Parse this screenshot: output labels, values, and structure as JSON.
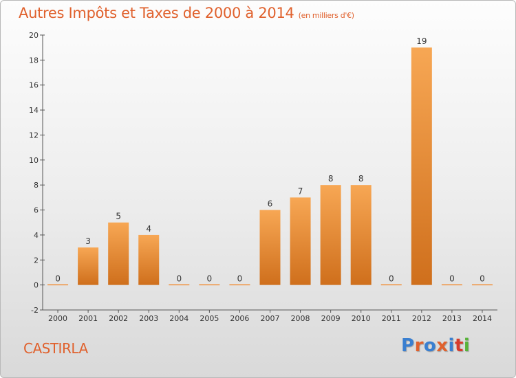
{
  "header": {
    "title": "Autres Impôts et Taxes de 2000 à 2014",
    "unit": "(en milliers d'€)"
  },
  "footer": {
    "commune": "CASTIRLA",
    "logo": "Proxiti",
    "logo_colors": [
      "#3a7fd0",
      "#e0612d",
      "#3a7fd0",
      "#e0612d",
      "#3a7fd0",
      "#d83a2a",
      "#57b33a"
    ]
  },
  "chart_data": {
    "type": "bar",
    "title": "Autres Impôts et Taxes de 2000 à 2014",
    "subtitle": "(en milliers d'€)",
    "categories": [
      "2000",
      "2001",
      "2002",
      "2003",
      "2004",
      "2005",
      "2006",
      "2007",
      "2008",
      "2009",
      "2010",
      "2011",
      "2012",
      "2013",
      "2014"
    ],
    "values": [
      0,
      3,
      5,
      4,
      0,
      0,
      0,
      6,
      7,
      8,
      8,
      0,
      19,
      0,
      0
    ],
    "data_labels": [
      "0",
      "3",
      "5",
      "4",
      "0",
      "0",
      "0",
      "6",
      "7",
      "8",
      "8",
      "0",
      "19",
      "0",
      "0"
    ],
    "ylim": [
      -2,
      20
    ],
    "yticks": [
      -2,
      0,
      2,
      4,
      6,
      8,
      10,
      12,
      14,
      16,
      18,
      20
    ],
    "grid": false,
    "bar_color": "#f0903a",
    "xlabel": "",
    "ylabel": ""
  }
}
